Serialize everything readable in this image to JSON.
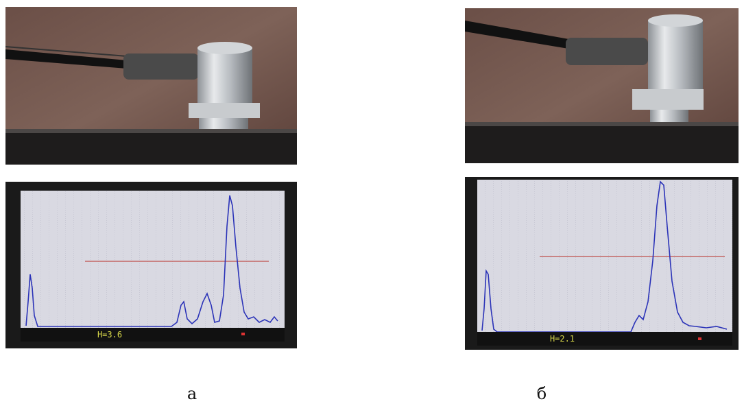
{
  "panels": [
    {
      "label": "а",
      "screen": {
        "reading": "H=3.6"
      }
    },
    {
      "label": "б",
      "screen": {
        "reading": "H=2.1"
      }
    }
  ]
}
